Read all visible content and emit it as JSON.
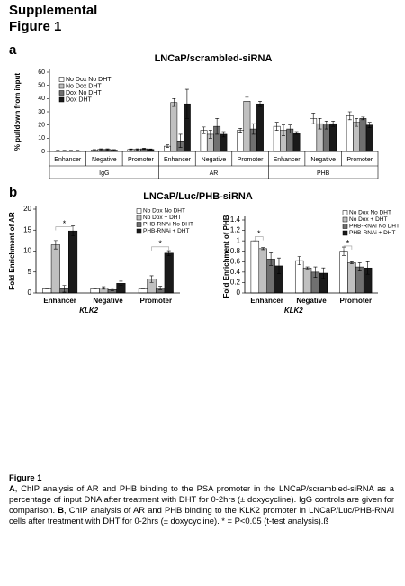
{
  "document": {
    "heading": [
      "Supplemental",
      "Figure 1"
    ],
    "panels": [
      {
        "label": "a",
        "title": "LNCaP/scrambled-siRNA"
      },
      {
        "label": "b",
        "title": "LNCaP/Luc/PHB-siRNA"
      }
    ],
    "caption": {
      "title": "Figure 1",
      "parts": [
        "A",
        ", ChIP analysis of AR and PHB binding to the PSA promoter in the LNCaP/scrambled-siRNA as a percentage of input DNA after treatment with DHT for 0-2hrs (± doxycycline). IgG controls are given for comparison. ",
        "B",
        ", ChIP analysis of AR and PHB binding to the KLK2 promoter in LNCaP/Luc/PHB-RNAi cells after treatment with DHT for 0-2hrs (± doxycycline). * = P<0.05 (t-test analysis).ß"
      ]
    }
  },
  "chart_data": [
    {
      "type": "bar",
      "y_label": "% pulldown from input",
      "categories": [
        "Enhancer",
        "Negative",
        "Promoter",
        "Enhancer",
        "Negative",
        "Promoter",
        "Enhancer",
        "Negative",
        "Promoter"
      ],
      "groups": [
        "IgG",
        "AR",
        "PHB"
      ],
      "series": [
        {
          "name": "No Dox No DHT",
          "color": "#ffffff",
          "values": [
            0.5,
            1,
            1.5,
            4,
            16,
            16,
            19,
            25,
            27
          ],
          "errors": [
            0.3,
            0.4,
            0.4,
            1,
            2.5,
            1.5,
            3,
            4,
            3
          ]
        },
        {
          "name": "No Dox DHT",
          "color": "#c0c0c0",
          "values": [
            0.5,
            1.5,
            1.5,
            37,
            13,
            38,
            16,
            21,
            22
          ],
          "errors": [
            0.3,
            0.5,
            0.5,
            3,
            3,
            3,
            4,
            4,
            3
          ]
        },
        {
          "name": "Dox No DHT",
          "color": "#707070",
          "values": [
            0.5,
            1.5,
            2,
            8,
            19,
            17,
            17,
            20,
            25
          ],
          "errors": [
            0.3,
            0.5,
            0.5,
            5,
            6,
            4,
            3,
            3,
            1
          ]
        },
        {
          "name": "Dox DHT",
          "color": "#1a1a1a",
          "values": [
            0.5,
            1,
            1.5,
            36,
            13,
            36,
            14,
            21,
            20
          ],
          "errors": [
            0.3,
            0.4,
            0.4,
            11,
            2,
            2,
            1,
            2,
            2
          ]
        }
      ],
      "ylim": [
        0,
        60
      ],
      "yticks": [
        0,
        10,
        20,
        30,
        40,
        50,
        60
      ]
    },
    {
      "type": "bar",
      "y_label": "Fold Enrichment of AR",
      "x_label": "KLK2",
      "categories": [
        "Enhancer",
        "Negative",
        "Promoter"
      ],
      "series": [
        {
          "name": "No Dox No DHT",
          "color": "#ffffff",
          "values": [
            1,
            1,
            1
          ],
          "errors": [
            0,
            0,
            0
          ]
        },
        {
          "name": "No Dox + DHT",
          "color": "#c0c0c0",
          "values": [
            11.5,
            1.2,
            3.3
          ],
          "errors": [
            1,
            0.3,
            0.8
          ]
        },
        {
          "name": "PHB-RNAi No DHT",
          "color": "#707070",
          "values": [
            1,
            0.8,
            1.2
          ],
          "errors": [
            0.8,
            0.3,
            0.4
          ]
        },
        {
          "name": "PHB-RNAi + DHT",
          "color": "#1a1a1a",
          "values": [
            14.8,
            2.3,
            9.5
          ],
          "errors": [
            1.2,
            0.5,
            0.6
          ]
        }
      ],
      "annotations": [
        "*",
        "*"
      ],
      "ylim": [
        0,
        20
      ],
      "yticks": [
        0,
        5,
        10,
        15,
        20
      ]
    },
    {
      "type": "bar",
      "y_label": "Fold Enrichment of PHB",
      "x_label": "KLK2",
      "categories": [
        "Enhancer",
        "Negative",
        "Promoter"
      ],
      "series": [
        {
          "name": "No Dox No DHT",
          "color": "#ffffff",
          "values": [
            1,
            0.62,
            0.8
          ],
          "errors": [
            0,
            0.08,
            0.08
          ]
        },
        {
          "name": "No Dox + DHT",
          "color": "#c0c0c0",
          "values": [
            0.85,
            0.48,
            0.58
          ],
          "errors": [
            0.02,
            0.02,
            0.02
          ]
        },
        {
          "name": "PHB-RNAi No DHT",
          "color": "#707070",
          "values": [
            0.65,
            0.4,
            0.5
          ],
          "errors": [
            0.12,
            0.1,
            0.08
          ]
        },
        {
          "name": "PHB-RNAi + DHT",
          "color": "#1a1a1a",
          "values": [
            0.52,
            0.38,
            0.48
          ],
          "errors": [
            0.15,
            0.1,
            0.12
          ]
        }
      ],
      "annotations": [
        "*",
        "*"
      ],
      "ylim": [
        0,
        1.4
      ],
      "yticks": [
        0,
        0.2,
        0.4,
        0.6,
        0.8,
        1,
        1.2,
        1.4
      ]
    }
  ]
}
